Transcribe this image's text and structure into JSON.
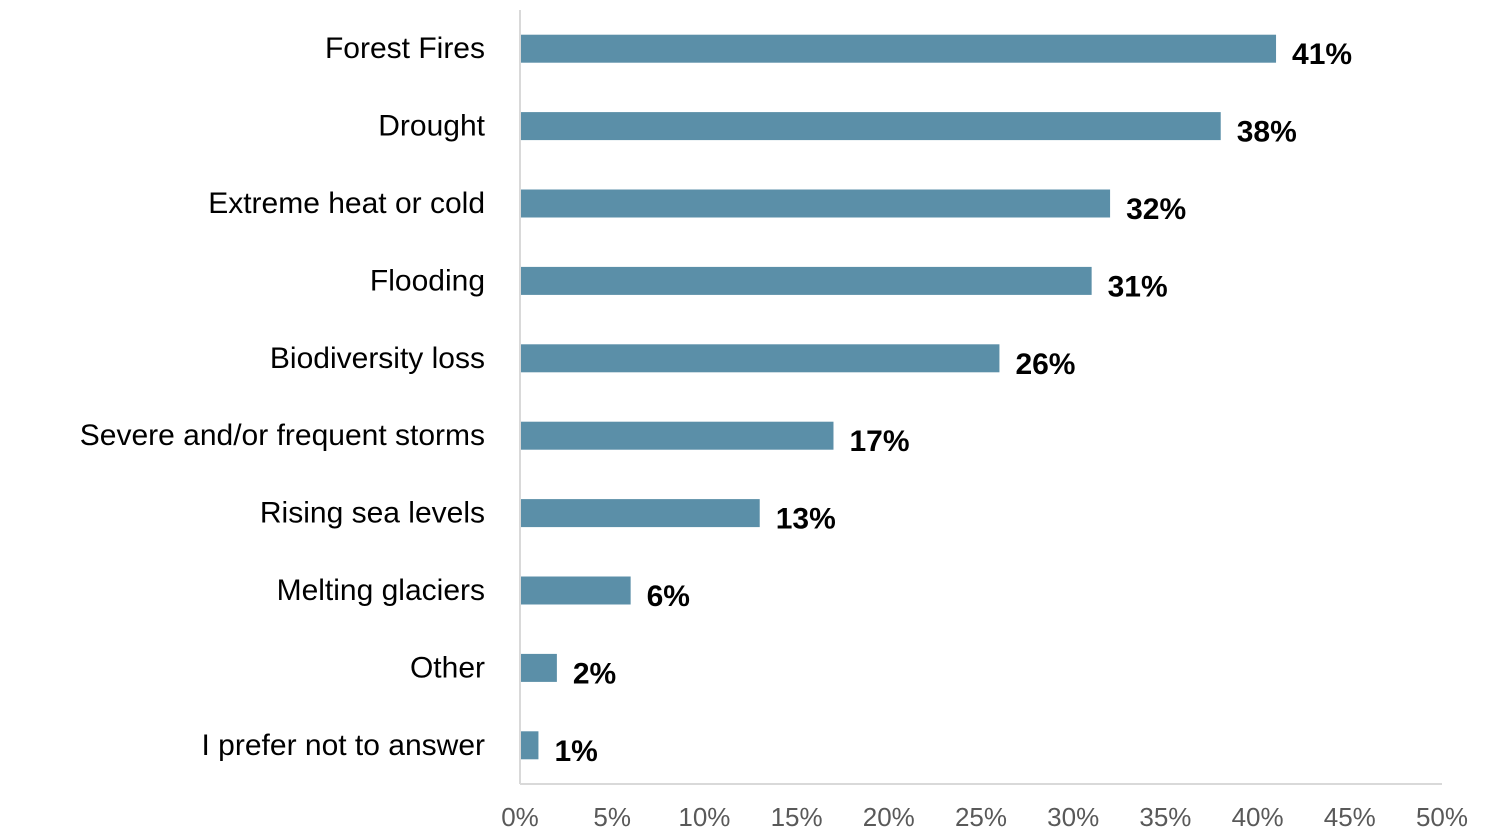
{
  "chart_data": {
    "type": "bar",
    "orientation": "horizontal",
    "categories": [
      "Forest Fires",
      "Drought",
      "Extreme heat or cold",
      "Flooding",
      "Biodiversity loss",
      "Severe and/or frequent storms",
      "Rising sea levels",
      "Melting glaciers",
      "Other",
      "I prefer not to answer"
    ],
    "values": [
      41,
      38,
      32,
      31,
      26,
      17,
      13,
      6,
      2,
      1
    ],
    "value_labels": [
      "41%",
      "38%",
      "32%",
      "31%",
      "26%",
      "17%",
      "13%",
      "6%",
      "2%",
      "1%"
    ],
    "xlim": [
      0,
      50
    ],
    "x_ticks": [
      0,
      5,
      10,
      15,
      20,
      25,
      30,
      35,
      40,
      45,
      50
    ],
    "x_tick_labels": [
      "0%",
      "5%",
      "10%",
      "15%",
      "20%",
      "25%",
      "30%",
      "35%",
      "40%",
      "45%",
      "50%"
    ],
    "title": "",
    "xlabel": "",
    "ylabel": "",
    "grid": false,
    "legend": "none",
    "colors": {
      "bar": "#5B8FA8",
      "axis": "#D9D9D9",
      "tick_text": "#595959"
    }
  }
}
